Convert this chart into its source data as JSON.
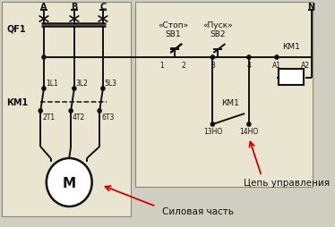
{
  "bg_panel": "#EAE5D0",
  "bg_outer": "#D0CEC0",
  "line_color": "#111111",
  "red_color": "#CC0000",
  "figsize": [
    3.74,
    2.55
  ],
  "dpi": 100,
  "labels": {
    "A": "A",
    "B": "B",
    "C": "C",
    "N": "N",
    "QF1": "QF1",
    "KM1_left": "КМ1",
    "1L1": "1L1",
    "3L2": "3L2",
    "5L3": "5L3",
    "2T1": "2T1",
    "4T2": "4T2",
    "6T3": "6T3",
    "M": "M",
    "stop_label": "«Стоп»",
    "start_label": "«Пуск»",
    "SB1": "SB1",
    "SB2": "SB2",
    "KM1_parallel": "КМ1",
    "13NO": "13НО",
    "14NO": "14НО",
    "KM1_coil": "КМ1",
    "A1": "A1",
    "A2": "A2",
    "n1": "1",
    "n2": "2",
    "n3": "3",
    "n4": "4",
    "tsepp_upr": "Цепь управления",
    "silovaya": "Силовая часть"
  }
}
